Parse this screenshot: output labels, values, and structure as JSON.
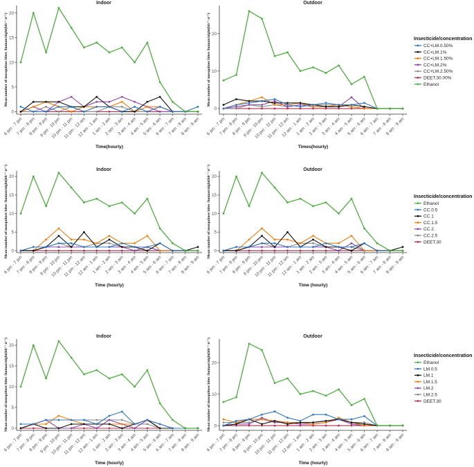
{
  "categories": [
    "6 pm - 7 pm",
    "7 pm - 8 pm",
    "8 pm - 9 pm",
    "9 pm - 10 pm",
    "10 pm - 11 pm",
    "11 pm - 12 am",
    "12 am - 1 am",
    "1 am - 2 am",
    "2 am - 3 am",
    "3 am - 4 am",
    "4 am - 5 am",
    "5 am - 6 am",
    "6 am - 7 am",
    "7 am - 8 am",
    "8 am - 9 am"
  ],
  "y_axis_label": "Mean number of mosquitoes bites /human/night(bh⁻¹ n⁻¹)",
  "legends": [
    {
      "title": "Insecticide/concentration",
      "items": [
        {
          "label": "CC+LM.0.50%",
          "color": "#2f78be"
        },
        {
          "label": "CC+LM.1%",
          "color": "#111111"
        },
        {
          "label": "CC+LM.1.50%",
          "color": "#f07f0e"
        },
        {
          "label": "CC+LM.2%",
          "color": "#8e44ad"
        },
        {
          "label": "CC+LM.2.50%",
          "color": "#8a8a8a"
        },
        {
          "label": "DEET.30.00%",
          "color": "#b0304b"
        },
        {
          "label": "Ethanol",
          "color": "#4cae3d"
        }
      ]
    },
    {
      "title": "Insecticide/concentration",
      "items": [
        {
          "label": "Ethanol",
          "color": "#4cae3d"
        },
        {
          "label": "CC.0.5",
          "color": "#2f78be"
        },
        {
          "label": "CC.1",
          "color": "#111111"
        },
        {
          "label": "CC.1.5",
          "color": "#f07f0e"
        },
        {
          "label": "CC.2",
          "color": "#8e44ad"
        },
        {
          "label": "CC.2.5",
          "color": "#8a8a8a"
        },
        {
          "label": "DEET.30",
          "color": "#b0304b"
        }
      ]
    },
    {
      "title": "Insecticide/concentration",
      "items": [
        {
          "label": "Ethanol",
          "color": "#4cae3d"
        },
        {
          "label": "LM.0.5",
          "color": "#2f78be"
        },
        {
          "label": "LM.1",
          "color": "#111111"
        },
        {
          "label": "LM.1.5",
          "color": "#f07f0e"
        },
        {
          "label": "LM.2",
          "color": "#8e44ad"
        },
        {
          "label": "LM.2.5",
          "color": "#8a8a8a"
        },
        {
          "label": "DEET.30",
          "color": "#b0304b"
        }
      ]
    }
  ],
  "chart_data": [
    {
      "type": "line",
      "title": "Indoor",
      "xlabel": "Time(hourly)",
      "ylabel": "Mean number of mosquitoes bites /human/night(bh⁻¹ n⁻¹)",
      "ylim": [
        -0.5,
        21.5
      ],
      "yticks": [
        0,
        5,
        10,
        15,
        20
      ],
      "series": [
        {
          "name": "Ethanol",
          "color": "#4cae3d",
          "values": [
            10,
            20,
            12,
            21,
            17,
            13,
            14,
            12,
            13,
            10,
            14,
            6,
            2,
            0,
            0
          ]
        },
        {
          "name": "CC+LM.0.50%",
          "color": "#2f78be",
          "values": [
            1,
            0,
            0,
            1,
            1,
            0,
            1,
            1,
            0,
            1,
            0,
            1,
            0,
            0,
            1
          ]
        },
        {
          "name": "CC+LM.1%",
          "color": "#111111",
          "values": [
            0,
            2,
            2,
            2,
            1,
            1,
            3,
            1,
            0,
            0,
            2,
            3,
            0,
            0,
            0
          ]
        },
        {
          "name": "CC+LM.1.50%",
          "color": "#f07f0e",
          "values": [
            0,
            1,
            2,
            1,
            0,
            1,
            1,
            1,
            2,
            0,
            1,
            1,
            0,
            0,
            0
          ]
        },
        {
          "name": "CC+LM.2%",
          "color": "#8e44ad",
          "values": [
            0,
            1,
            0,
            2,
            3,
            1,
            2,
            2,
            3,
            2,
            1,
            0,
            0,
            0,
            0
          ]
        },
        {
          "name": "CC+LM.2.50%",
          "color": "#8a8a8a",
          "values": [
            0,
            0,
            1,
            0,
            1,
            0,
            0,
            1,
            1,
            0,
            0,
            1,
            0,
            0,
            0
          ]
        },
        {
          "name": "DEET.30.00%",
          "color": "#b0304b",
          "values": [
            0,
            0,
            0,
            0,
            0,
            0,
            0,
            0,
            0,
            0,
            0,
            0,
            0,
            0,
            0
          ]
        }
      ]
    },
    {
      "type": "line",
      "title": "Outdoor",
      "xlabel": "Times(hourly)",
      "ylabel": "Mean number of mosquitoes bites /human/night(bh⁻¹ n⁻¹)",
      "ylim": [
        -1.5,
        27.5
      ],
      "yticks": [
        0,
        10,
        20
      ],
      "series": [
        {
          "name": "Ethanol",
          "color": "#4cae3d",
          "values": [
            7.5,
            9,
            26,
            24,
            14,
            15,
            10,
            11,
            9.5,
            11.5,
            6.5,
            8.5,
            0,
            0,
            0
          ]
        },
        {
          "name": "CC+LM.0.50%",
          "color": "#2f78be",
          "values": [
            0,
            1,
            1.5,
            2,
            2.5,
            1,
            0.5,
            1,
            1.5,
            1,
            1,
            1.5,
            0,
            0,
            0
          ]
        },
        {
          "name": "CC+LM.1%",
          "color": "#111111",
          "values": [
            1,
            2.5,
            2,
            2,
            1.5,
            1.5,
            1.5,
            1,
            0.5,
            0.5,
            1,
            0.5,
            0,
            0,
            0
          ]
        },
        {
          "name": "CC+LM.1.50%",
          "color": "#f07f0e",
          "values": [
            0,
            1,
            2,
            3,
            1,
            1,
            1.5,
            0.5,
            0.5,
            1,
            0.5,
            0,
            0,
            0,
            0
          ]
        },
        {
          "name": "CC+LM.2%",
          "color": "#8e44ad",
          "values": [
            0,
            0.5,
            1,
            1,
            2,
            0.5,
            1,
            0.5,
            0.5,
            0.5,
            3,
            0,
            0,
            0,
            0
          ]
        },
        {
          "name": "CC+LM.2.50%",
          "color": "#8a8a8a",
          "values": [
            0,
            0,
            1,
            0.5,
            1,
            0.5,
            1,
            1,
            1,
            1,
            0.5,
            0,
            0,
            0,
            0
          ]
        },
        {
          "name": "DEET.30.00%",
          "color": "#b0304b",
          "values": [
            0,
            0,
            0,
            0,
            0,
            0,
            0,
            0,
            0,
            0,
            0,
            0,
            0,
            0,
            0
          ]
        }
      ]
    },
    {
      "type": "line",
      "title": "Indoor",
      "xlabel": "Time (hourly)",
      "ylabel": "Mean number of mosquitoes bites /human/night(bh⁻¹ n⁻¹)",
      "ylim": [
        -0.5,
        21.5
      ],
      "yticks": [
        0,
        5,
        10,
        15,
        20
      ],
      "series": [
        {
          "name": "Ethanol",
          "color": "#4cae3d",
          "values": [
            10,
            20,
            12,
            21,
            17,
            13,
            14,
            12,
            13,
            10,
            14,
            6,
            2,
            0,
            0
          ]
        },
        {
          "name": "CC.0.5",
          "color": "#2f78be",
          "values": [
            0,
            1,
            1,
            2,
            2,
            1,
            1,
            1,
            2,
            1,
            1,
            2,
            0,
            0,
            0
          ]
        },
        {
          "name": "CC.1",
          "color": "#111111",
          "values": [
            0,
            0,
            1,
            4,
            1,
            5,
            1,
            3,
            1,
            1,
            0,
            2,
            0,
            0,
            1
          ]
        },
        {
          "name": "CC.1.5",
          "color": "#f07f0e",
          "values": [
            0,
            0,
            3,
            6,
            3,
            3,
            2,
            4,
            2,
            2,
            4,
            0,
            0,
            0,
            0
          ]
        },
        {
          "name": "CC.2",
          "color": "#8e44ad",
          "values": [
            0,
            0,
            1,
            1,
            1,
            1,
            1,
            1,
            1,
            0,
            1,
            0,
            0,
            0,
            0
          ]
        },
        {
          "name": "CC.2.5",
          "color": "#8a8a8a",
          "values": [
            0,
            1,
            1,
            2,
            1,
            1,
            2,
            2,
            1,
            1,
            1,
            0,
            0,
            0,
            0
          ]
        },
        {
          "name": "DEET.30",
          "color": "#b0304b",
          "values": [
            0,
            0,
            0,
            0,
            0,
            0,
            0,
            0,
            0,
            0,
            0,
            0,
            0,
            0,
            0
          ]
        }
      ]
    },
    {
      "type": "line",
      "title": "Outdoor",
      "xlabel": "Time (hourly)",
      "ylabel": "Mean number of mosquitoes bites /human/night(bh⁻¹ n⁻¹)",
      "ylim": [
        -0.5,
        21.5
      ],
      "yticks": [
        0,
        5,
        10,
        15,
        20
      ],
      "series": [
        {
          "name": "Ethanol",
          "color": "#4cae3d",
          "values": [
            10,
            20,
            12,
            21,
            17,
            13,
            14,
            12,
            13,
            10,
            14,
            6,
            2,
            0,
            0
          ]
        },
        {
          "name": "CC.0.5",
          "color": "#2f78be",
          "values": [
            0,
            1,
            1,
            2,
            2,
            1,
            1,
            1,
            2,
            1,
            1,
            2,
            0,
            0,
            0
          ]
        },
        {
          "name": "CC.1",
          "color": "#111111",
          "values": [
            0,
            0,
            1,
            4,
            1,
            5,
            1,
            3,
            1,
            1,
            0,
            2,
            0,
            0,
            1
          ]
        },
        {
          "name": "CC.1.5",
          "color": "#f07f0e",
          "values": [
            0,
            0,
            3,
            6,
            3,
            3,
            2,
            4,
            2,
            2,
            4,
            0,
            0,
            0,
            0
          ]
        },
        {
          "name": "CC.2",
          "color": "#8e44ad",
          "values": [
            0,
            0,
            1,
            1,
            1,
            1,
            1,
            1,
            1,
            0,
            2,
            0,
            0,
            0,
            0
          ]
        },
        {
          "name": "CC.2.5",
          "color": "#8a8a8a",
          "values": [
            0,
            1,
            1,
            2,
            1,
            1,
            2,
            2,
            1,
            1,
            1,
            0,
            0,
            0,
            0
          ]
        },
        {
          "name": "DEET.30",
          "color": "#b0304b",
          "values": [
            0,
            0,
            0,
            0,
            0,
            0,
            0,
            0,
            0,
            0,
            0,
            0,
            0,
            0,
            0
          ]
        }
      ]
    },
    {
      "type": "line",
      "title": "Indoor",
      "xlabel": "Time (hourly)",
      "ylabel": "Mean number of mosquitoes bites /human/night(bh⁻¹ n⁻¹)",
      "ylim": [
        -0.5,
        21.5
      ],
      "yticks": [
        0,
        5,
        10,
        15,
        20
      ],
      "series": [
        {
          "name": "Ethanol",
          "color": "#4cae3d",
          "values": [
            10,
            20,
            12,
            21,
            17,
            13,
            14,
            12,
            13,
            10,
            14,
            6,
            2,
            0,
            0
          ]
        },
        {
          "name": "LM.0.5",
          "color": "#2f78be",
          "values": [
            1,
            1,
            2,
            2,
            2,
            2,
            1,
            3,
            4,
            1,
            2,
            1,
            0,
            0,
            0
          ]
        },
        {
          "name": "LM.1",
          "color": "#111111",
          "values": [
            0,
            1,
            0,
            0,
            1,
            1,
            1,
            1,
            0,
            1,
            2,
            0,
            0,
            0,
            0
          ]
        },
        {
          "name": "LM.1.5",
          "color": "#f07f0e",
          "values": [
            0,
            1,
            1,
            3,
            2,
            1,
            1,
            1,
            1,
            1,
            2,
            0,
            0,
            0,
            0
          ]
        },
        {
          "name": "LM.2",
          "color": "#8e44ad",
          "values": [
            0,
            1,
            2,
            0,
            0,
            1,
            0,
            2,
            1,
            0,
            2,
            1,
            0,
            0,
            0
          ]
        },
        {
          "name": "LM.2.5",
          "color": "#8a8a8a",
          "values": [
            0,
            1,
            2,
            2,
            2,
            2,
            2,
            2,
            2,
            1,
            1,
            0,
            0,
            0,
            0
          ]
        },
        {
          "name": "DEET.30",
          "color": "#b0304b",
          "values": [
            0,
            0,
            0,
            0,
            0,
            0,
            0,
            0,
            0,
            0,
            0,
            0,
            0,
            0,
            0
          ]
        }
      ]
    },
    {
      "type": "line",
      "title": "Outdoor",
      "xlabel": "Time (hourly)",
      "ylabel": "Mean number of mosquitoes bites /human/night(bh⁻¹ n⁻¹)",
      "ylim": [
        -1.5,
        27.5
      ],
      "yticks": [
        0,
        10,
        20
      ],
      "series": [
        {
          "name": "Ethanol",
          "color": "#4cae3d",
          "values": [
            7.5,
            9,
            26,
            24,
            13.5,
            15,
            10,
            11,
            9.5,
            11.5,
            6.5,
            8.5,
            0,
            0,
            0
          ]
        },
        {
          "name": "LM.0.5",
          "color": "#2f78be",
          "values": [
            0,
            1.5,
            2,
            3.5,
            4.5,
            2.5,
            1.5,
            3.5,
            3.5,
            2,
            2,
            3,
            0,
            0,
            0
          ]
        },
        {
          "name": "LM.1",
          "color": "#111111",
          "values": [
            0,
            0.5,
            2,
            0.5,
            1.5,
            0.5,
            1,
            1,
            1.5,
            2,
            1,
            0.5,
            0,
            0,
            0
          ]
        },
        {
          "name": "LM.1.5",
          "color": "#f07f0e",
          "values": [
            2,
            1,
            2,
            2,
            1.5,
            1,
            1,
            0.5,
            1,
            2.5,
            1,
            0,
            0,
            0,
            0
          ]
        },
        {
          "name": "LM.2",
          "color": "#8e44ad",
          "values": [
            0,
            0.5,
            0.5,
            2.5,
            1,
            1,
            0.5,
            0.5,
            1,
            2,
            0.5,
            0,
            0,
            0,
            0
          ]
        },
        {
          "name": "LM.2.5",
          "color": "#8a8a8a",
          "values": [
            1,
            1,
            1,
            2,
            1,
            1,
            1,
            1,
            1.5,
            2,
            1,
            1,
            0,
            0,
            0
          ]
        },
        {
          "name": "DEET.30",
          "color": "#b0304b",
          "values": [
            0,
            0,
            0,
            0,
            0,
            0,
            0,
            0,
            0,
            0,
            0,
            0,
            0,
            0,
            0
          ]
        }
      ]
    }
  ]
}
